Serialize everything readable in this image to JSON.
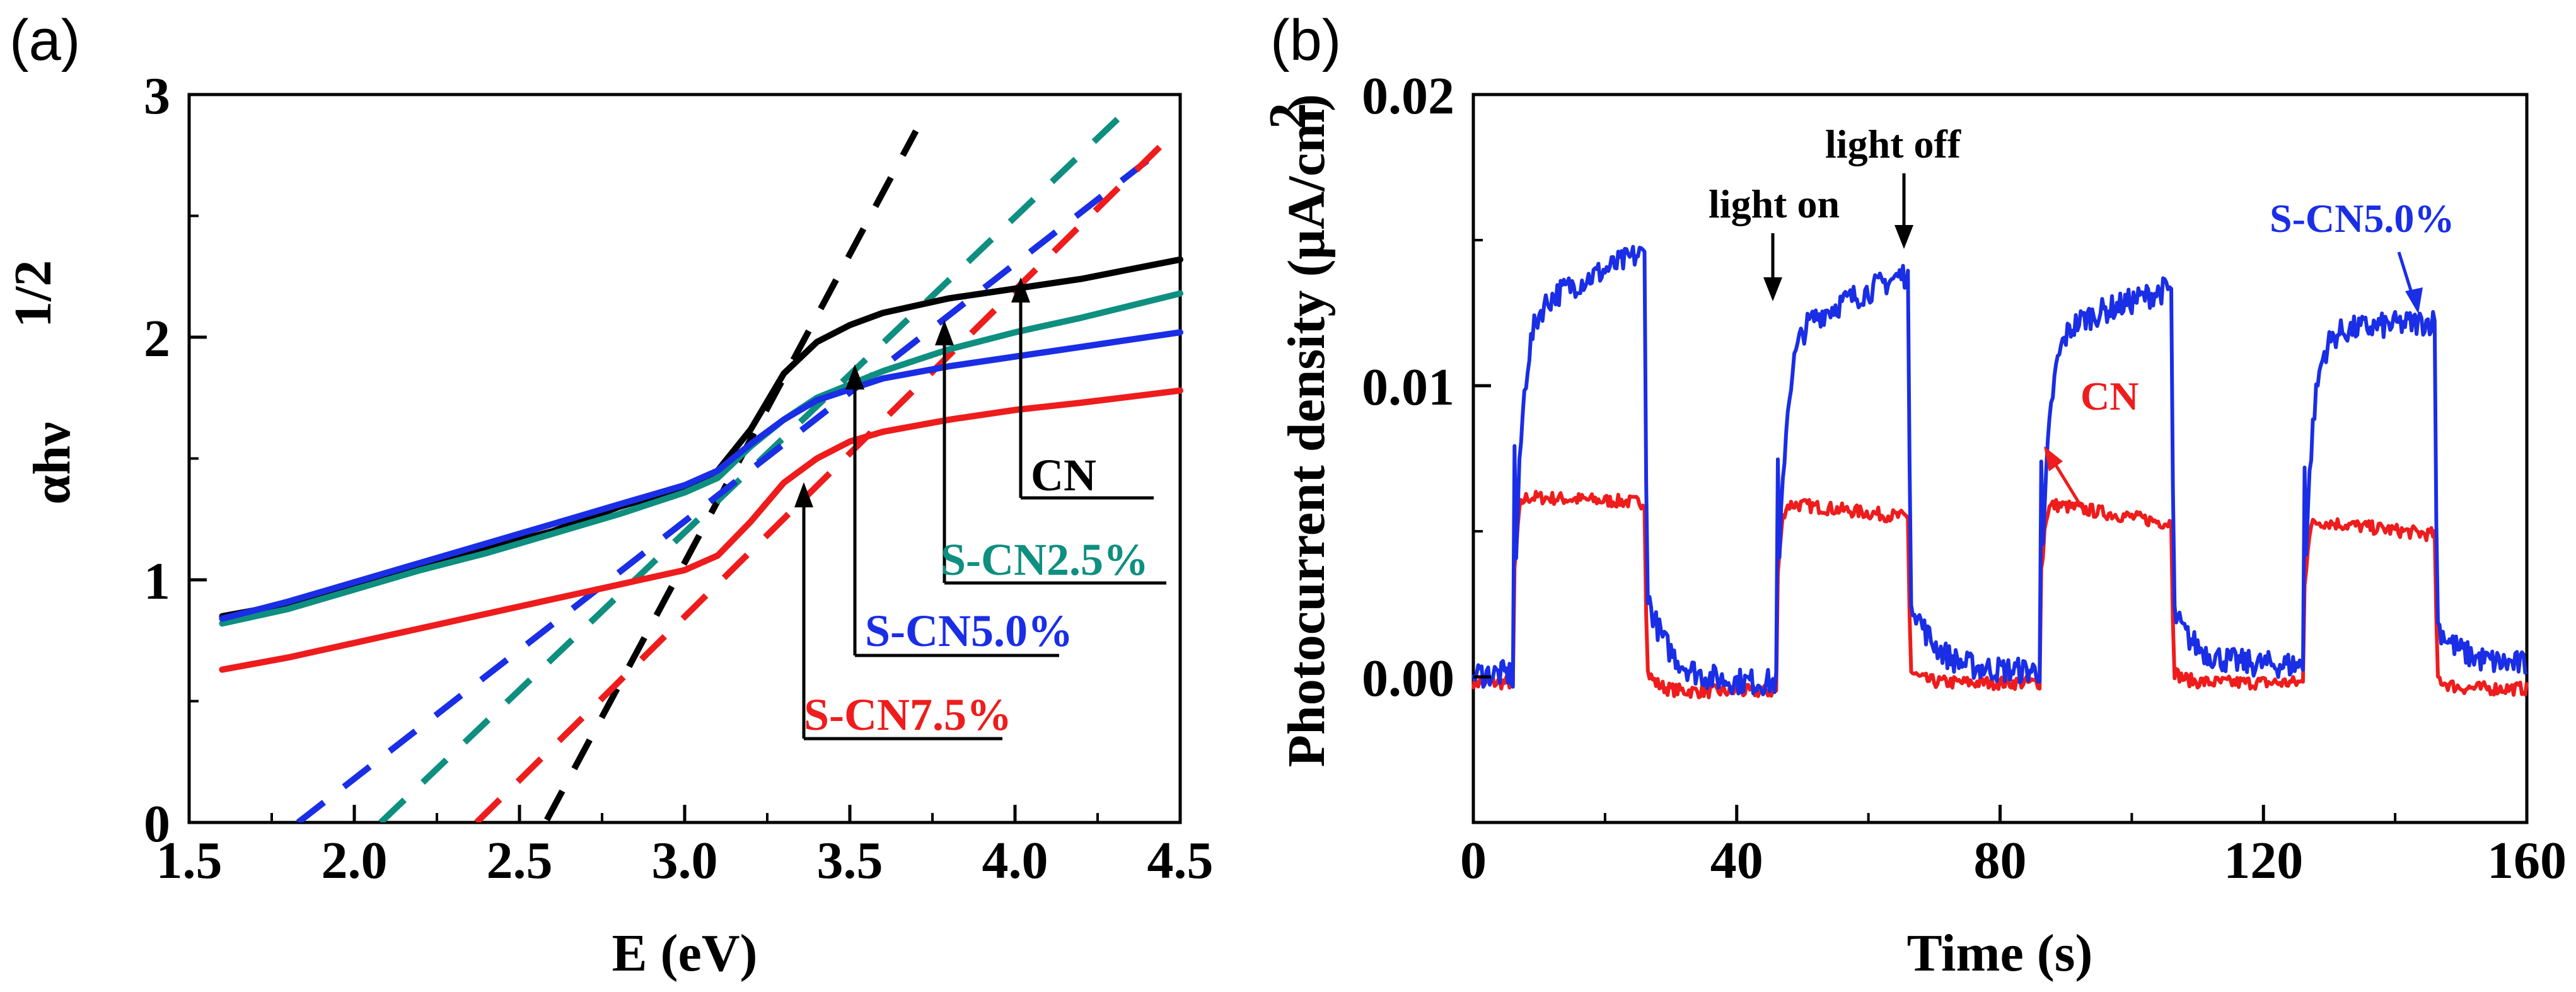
{
  "chart_data": [
    {
      "panel": "(a)",
      "type": "line",
      "xlabel": "E (eV)",
      "ylabel": "αhν",
      "ylabel_exponent": "1/2",
      "xlim": [
        1.5,
        4.5
      ],
      "ylim": [
        0,
        3
      ],
      "xticks": [
        "1.5",
        "2.0",
        "2.5",
        "3.0",
        "3.5",
        "4.0",
        "4.5"
      ],
      "yticks": [
        "0",
        "1",
        "2",
        "3"
      ],
      "series": [
        {
          "name": "CN",
          "color": "#000000",
          "x": [
            1.6,
            1.8,
            2.0,
            2.2,
            2.4,
            2.6,
            2.8,
            3.0,
            3.1,
            3.2,
            3.3,
            3.4,
            3.5,
            3.6,
            3.8,
            4.0,
            4.2,
            4.5
          ],
          "y": [
            0.85,
            0.9,
            0.97,
            1.05,
            1.13,
            1.2,
            1.3,
            1.38,
            1.45,
            1.62,
            1.85,
            1.98,
            2.05,
            2.1,
            2.16,
            2.2,
            2.24,
            2.32
          ]
        },
        {
          "name": "S-CN2.5%",
          "color": "#0e8f80",
          "x": [
            1.6,
            1.8,
            2.0,
            2.2,
            2.4,
            2.6,
            2.8,
            3.0,
            3.1,
            3.2,
            3.3,
            3.4,
            3.6,
            3.8,
            4.0,
            4.2,
            4.5
          ],
          "y": [
            0.82,
            0.88,
            0.96,
            1.04,
            1.11,
            1.19,
            1.27,
            1.36,
            1.42,
            1.55,
            1.66,
            1.75,
            1.86,
            1.95,
            2.02,
            2.08,
            2.18
          ]
        },
        {
          "name": "S-CN5.0%",
          "color": "#1a2ee6",
          "x": [
            1.6,
            1.8,
            2.0,
            2.2,
            2.4,
            2.6,
            2.8,
            3.0,
            3.1,
            3.2,
            3.3,
            3.4,
            3.6,
            3.8,
            4.0,
            4.2,
            4.5
          ],
          "y": [
            0.84,
            0.91,
            0.99,
            1.07,
            1.15,
            1.23,
            1.31,
            1.39,
            1.45,
            1.56,
            1.66,
            1.74,
            1.83,
            1.88,
            1.92,
            1.96,
            2.02
          ]
        },
        {
          "name": "S-CN7.5%",
          "color": "#ee1c1c",
          "x": [
            1.6,
            1.8,
            2.0,
            2.2,
            2.4,
            2.6,
            2.8,
            3.0,
            3.1,
            3.2,
            3.3,
            3.4,
            3.5,
            3.6,
            3.8,
            4.0,
            4.2,
            4.5
          ],
          "y": [
            0.63,
            0.68,
            0.74,
            0.8,
            0.86,
            0.92,
            0.98,
            1.04,
            1.1,
            1.24,
            1.4,
            1.5,
            1.57,
            1.61,
            1.66,
            1.7,
            1.73,
            1.78
          ]
        }
      ],
      "tangents": [
        {
          "name": "CN",
          "color": "#000000",
          "x": [
            2.5,
            3.7
          ],
          "y": [
            -0.2,
            2.85
          ]
        },
        {
          "name": "S-CN2.5%",
          "color": "#0e8f80",
          "x": [
            2.08,
            4.35
          ],
          "y": [
            0,
            2.95
          ]
        },
        {
          "name": "S-CN5.0%",
          "color": "#1a2ee6",
          "x": [
            1.83,
            4.45
          ],
          "y": [
            0,
            2.78
          ]
        },
        {
          "name": "S-CN7.5%",
          "color": "#ee1c1c",
          "x": [
            2.37,
            4.45
          ],
          "y": [
            0,
            2.8
          ]
        }
      ],
      "annotations": [
        {
          "text": "CN",
          "color": "#000000"
        },
        {
          "text": "S-CN2.5%",
          "color": "#0e8f80"
        },
        {
          "text": "S-CN5.0%",
          "color": "#1a2ee6"
        },
        {
          "text": "S-CN7.5%",
          "color": "#ee1c1c"
        }
      ]
    },
    {
      "panel": "(b)",
      "type": "line",
      "xlabel": "Time (s)",
      "ylabel": "Photocurrent density (μA/cm",
      "ylabel_exponent": "2",
      "ylabel_close": ")",
      "xlim": [
        0,
        160
      ],
      "ylim": [
        -0.005,
        0.02
      ],
      "xticks": [
        "0",
        "40",
        "80",
        "120",
        "160"
      ],
      "yticks": [
        "0.00",
        "0.01",
        "0.02"
      ],
      "series": [
        {
          "name": "S-CN5.0%",
          "color": "#1a2ee6",
          "on_intervals": [
            [
              6,
              26
            ],
            [
              46,
              66
            ],
            [
              86,
              106
            ],
            [
              126,
              146
            ]
          ],
          "on_start_values": [
            0.0125,
            0.0118,
            0.0118,
            0.0118
          ],
          "on_end_values": [
            0.0145,
            0.0138,
            0.0133,
            0.0122
          ],
          "off_start_values": [
            0.0028,
            0.0028,
            0.0022,
            0.0018
          ],
          "off_end_values": [
            -0.0002,
            0.0002,
            0.0004,
            0.0004
          ]
        },
        {
          "name": "CN",
          "color": "#ee1c1c",
          "on_intervals": [
            [
              6,
              26
            ],
            [
              46,
              66
            ],
            [
              86,
              106
            ],
            [
              126,
              146
            ]
          ],
          "on_start_values": [
            0.0062,
            0.006,
            0.006,
            0.0054
          ],
          "on_end_values": [
            0.006,
            0.0055,
            0.0053,
            0.0049
          ],
          "off_start_values": [
            0.0002,
            0.0002,
            0.0002,
            0.0
          ],
          "off_end_values": [
            -0.0005,
            -0.0002,
            -0.0002,
            -0.0004
          ]
        }
      ],
      "annotations": [
        {
          "text": "light on",
          "color": "#000000"
        },
        {
          "text": "light off",
          "color": "#000000"
        },
        {
          "text": "S-CN5.0%",
          "color": "#1a2ee6"
        },
        {
          "text": "CN",
          "color": "#ee1c1c"
        }
      ]
    }
  ]
}
